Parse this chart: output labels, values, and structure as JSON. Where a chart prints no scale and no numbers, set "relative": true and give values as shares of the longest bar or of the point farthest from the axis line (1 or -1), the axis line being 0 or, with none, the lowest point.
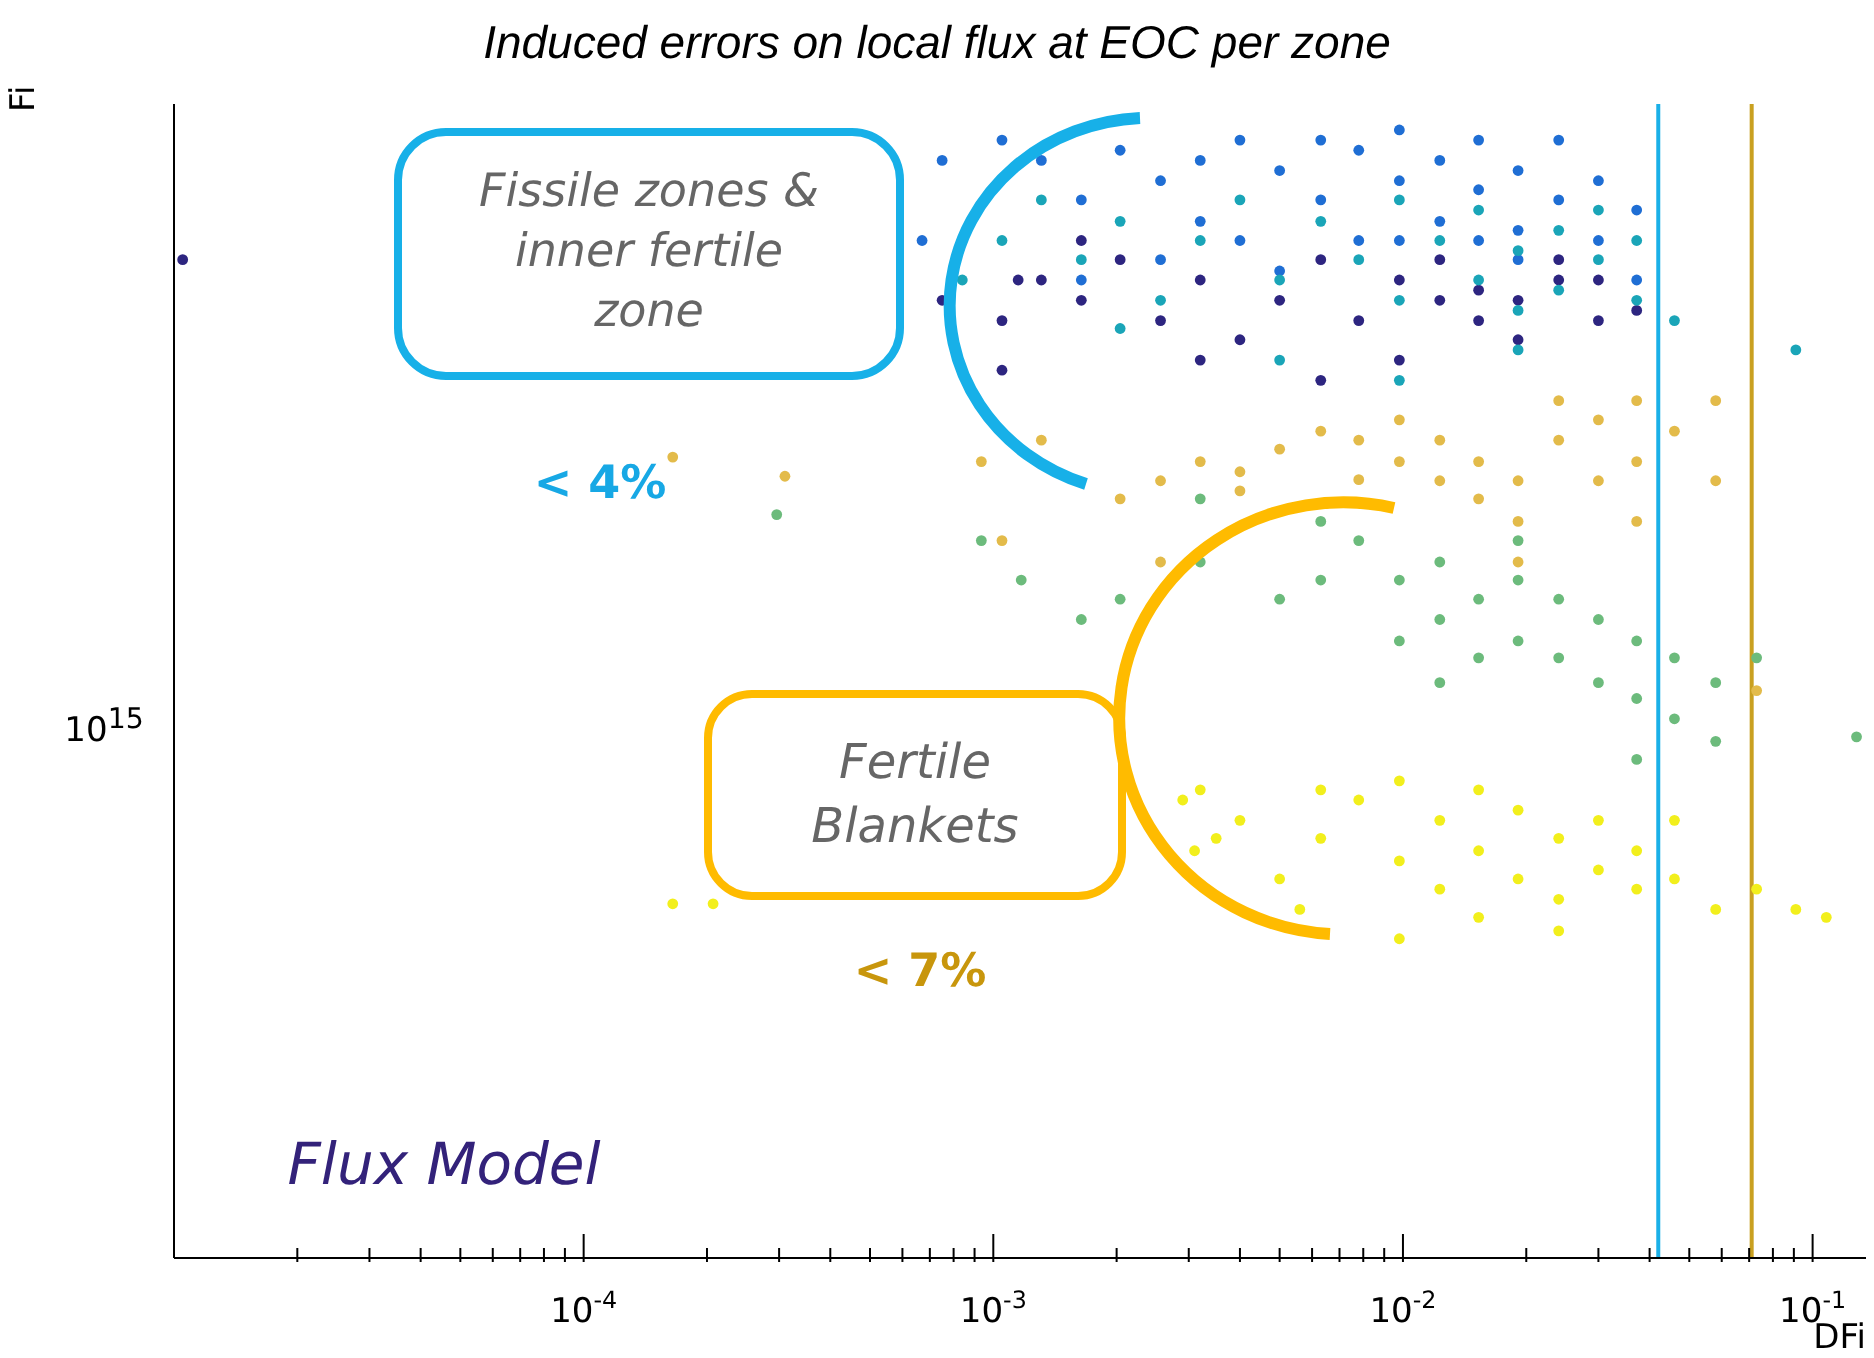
{
  "chart_data": {
    "type": "scatter",
    "title": "Induced errors on local flux at EOC per zone",
    "xlabel": "DFi",
    "ylabel": "Fi",
    "log": "x",
    "grid": false,
    "legend": false,
    "marker": "circle",
    "relative": true,
    "xlim": [
      1e-05,
      0.135
    ],
    "xticks": [
      {
        "value": 2e-05,
        "label": null
      },
      {
        "value": 3e-05,
        "label": null
      },
      {
        "value": 4e-05,
        "label": null
      },
      {
        "value": 5e-05,
        "label": null
      },
      {
        "value": 6e-05,
        "label": null
      },
      {
        "value": 7e-05,
        "label": null
      },
      {
        "value": 8e-05,
        "label": null
      },
      {
        "value": 9e-05,
        "label": null
      },
      {
        "value": 0.0001,
        "label": "10$^{-4}$"
      },
      {
        "value": 0.0002,
        "label": null
      },
      {
        "value": 0.0003,
        "label": null
      },
      {
        "value": 0.0004,
        "label": null
      },
      {
        "value": 0.0005,
        "label": null
      },
      {
        "value": 0.0006,
        "label": null
      },
      {
        "value": 0.0007,
        "label": null
      },
      {
        "value": 0.0008,
        "label": null
      },
      {
        "value": 0.0009,
        "label": null
      },
      {
        "value": 0.001,
        "label": "10$^{-3}$"
      },
      {
        "value": 0.002,
        "label": null
      },
      {
        "value": 0.003,
        "label": null
      },
      {
        "value": 0.004,
        "label": null
      },
      {
        "value": 0.005,
        "label": null
      },
      {
        "value": 0.006,
        "label": null
      },
      {
        "value": 0.007,
        "label": null
      },
      {
        "value": 0.008,
        "label": null
      },
      {
        "value": 0.009,
        "label": null
      },
      {
        "value": 0.01,
        "label": "10$^{-2}$"
      },
      {
        "value": 0.02,
        "label": null
      },
      {
        "value": 0.03,
        "label": null
      },
      {
        "value": 0.04,
        "label": null
      },
      {
        "value": 0.05,
        "label": null
      },
      {
        "value": 0.06,
        "label": null
      },
      {
        "value": 0.07,
        "label": null
      },
      {
        "value": 0.08,
        "label": null
      },
      {
        "value": 0.09,
        "label": null
      },
      {
        "value": 0.1,
        "label": "10$^{-1}$"
      }
    ],
    "ref_lines": [
      {
        "axis": "x",
        "value": 0.042,
        "color": "#1ab0e8"
      },
      {
        "axis": "x",
        "value": 0.071,
        "color": "#c9a020"
      }
    ],
    "annotations": [
      "Fissile zones & inner fertile zone",
      "< 4%",
      "Fertile Blankets",
      "< 7%",
      "Flux Model",
      "10$^{15}$"
    ],
    "series": [
      {
        "color": "#1f6ed4",
        "x": [
          0.00105,
          0.00131,
          0.00164,
          0.00204,
          0.00256,
          0.0032,
          0.004,
          0.005,
          0.0063,
          0.0078,
          0.0098,
          0.0098,
          0.0123,
          0.0123,
          0.0153,
          0.0153,
          0.0191,
          0.0191,
          0.024,
          0.024,
          0.03,
          0.03,
          0.0372,
          0.00075,
          0.00067,
          0.004,
          0.0078,
          0.005,
          0.00256,
          0.00164,
          0.0372,
          0.0191,
          0.0098,
          0.0032,
          0.0063,
          0.0153
        ],
        "values": [
          0.991,
          0.973,
          0.938,
          0.982,
          0.955,
          0.919,
          0.991,
          0.964,
          0.938,
          0.982,
          0.955,
          1,
          0.919,
          0.973,
          0.991,
          0.947,
          0.964,
          0.911,
          0.991,
          0.938,
          0.955,
          0.902,
          0.929,
          0.973,
          0.902,
          0.902,
          0.902,
          0.875,
          0.885,
          0.867,
          0.867,
          0.885,
          0.902,
          0.973,
          0.991,
          0.902
        ]
      },
      {
        "color": "#2d2580",
        "x": [
          1.05e-05,
          0.00115,
          0.00075,
          0.00105,
          0.00131,
          0.00164,
          0.00204,
          0.00256,
          0.0032,
          0.004,
          0.005,
          0.0063,
          0.0078,
          0.0098,
          0.0098,
          0.0123,
          0.0123,
          0.0153,
          0.0153,
          0.0191,
          0.0191,
          0.024,
          0.024,
          0.03,
          0.03,
          0.0372,
          0.0032,
          0.0063,
          0.00164,
          0.00105
        ],
        "values": [
          0.885,
          0.867,
          0.849,
          0.831,
          0.867,
          0.849,
          0.885,
          0.831,
          0.867,
          0.814,
          0.849,
          0.885,
          0.831,
          0.867,
          0.796,
          0.849,
          0.885,
          0.831,
          0.858,
          0.849,
          0.814,
          0.867,
          0.885,
          0.831,
          0.867,
          0.84,
          0.796,
          0.778,
          0.902,
          0.787
        ]
      },
      {
        "color": "#1aa5b8",
        "x": [
          0.00084,
          0.00105,
          0.00131,
          0.00164,
          0.00204,
          0.00256,
          0.0032,
          0.004,
          0.005,
          0.0063,
          0.0078,
          0.0098,
          0.0098,
          0.0123,
          0.0153,
          0.0153,
          0.0191,
          0.0191,
          0.024,
          0.024,
          0.03,
          0.03,
          0.0372,
          0.0372,
          0.046,
          0.091,
          0.005,
          0.0098,
          0.00204,
          0.0191
        ],
        "values": [
          0.867,
          0.902,
          0.938,
          0.885,
          0.919,
          0.849,
          0.902,
          0.938,
          0.867,
          0.919,
          0.885,
          0.938,
          0.849,
          0.902,
          0.867,
          0.929,
          0.893,
          0.84,
          0.911,
          0.858,
          0.885,
          0.929,
          0.849,
          0.902,
          0.831,
          0.805,
          0.796,
          0.778,
          0.824,
          0.805
        ]
      },
      {
        "color": "#e3bb4a",
        "x": [
          0.000165,
          0.00031,
          0.000935,
          0.00131,
          0.00204,
          0.00256,
          0.0032,
          0.004,
          0.005,
          0.0063,
          0.0078,
          0.0098,
          0.0098,
          0.0123,
          0.0123,
          0.0153,
          0.0153,
          0.0191,
          0.0191,
          0.024,
          0.024,
          0.03,
          0.03,
          0.0372,
          0.0372,
          0.0372,
          0.046,
          0.058,
          0.073,
          0.058,
          0.0078,
          0.004,
          0.00256,
          0.00105,
          0.0191
        ],
        "values": [
          0.71,
          0.693,
          0.706,
          0.725,
          0.673,
          0.689,
          0.706,
          0.697,
          0.717,
          0.733,
          0.725,
          0.706,
          0.743,
          0.689,
          0.725,
          0.706,
          0.673,
          0.689,
          0.653,
          0.76,
          0.725,
          0.743,
          0.689,
          0.76,
          0.706,
          0.653,
          0.733,
          0.689,
          0.503,
          0.76,
          0.69,
          0.68,
          0.617,
          0.636,
          0.617
        ]
      },
      {
        "color": "#6cbb7c",
        "x": [
          0.000296,
          0.000935,
          0.00117,
          0.00164,
          0.00204,
          0.0032,
          0.005,
          0.0063,
          0.0078,
          0.0098,
          0.0098,
          0.0123,
          0.0123,
          0.0153,
          0.0153,
          0.0191,
          0.0191,
          0.024,
          0.024,
          0.03,
          0.03,
          0.0372,
          0.0372,
          0.046,
          0.046,
          0.058,
          0.058,
          0.073,
          0.128,
          0.0032,
          0.0063,
          0.0191,
          0.0372,
          0.0123
        ],
        "values": [
          0.659,
          0.636,
          0.601,
          0.566,
          0.584,
          0.617,
          0.584,
          0.601,
          0.636,
          0.601,
          0.547,
          0.617,
          0.566,
          0.584,
          0.532,
          0.601,
          0.547,
          0.584,
          0.532,
          0.566,
          0.51,
          0.547,
          0.496,
          0.532,
          0.478,
          0.51,
          0.458,
          0.532,
          0.462,
          0.673,
          0.653,
          0.636,
          0.442,
          0.51
        ]
      },
      {
        "color": "#f2ef1c",
        "x": [
          0.000165,
          0.000207,
          0.0031,
          0.0029,
          0.0035,
          0.0032,
          0.004,
          0.005,
          0.0063,
          0.0078,
          0.0098,
          0.0098,
          0.0123,
          0.0123,
          0.0153,
          0.0153,
          0.0191,
          0.0191,
          0.024,
          0.024,
          0.03,
          0.03,
          0.0372,
          0.0372,
          0.046,
          0.046,
          0.058,
          0.073,
          0.091,
          0.108,
          0.0098,
          0.024,
          0.0056,
          0.0063,
          0.0153
        ],
        "values": [
          0.314,
          0.314,
          0.361,
          0.406,
          0.372,
          0.415,
          0.388,
          0.336,
          0.372,
          0.406,
          0.423,
          0.352,
          0.388,
          0.327,
          0.415,
          0.361,
          0.336,
          0.397,
          0.372,
          0.318,
          0.344,
          0.388,
          0.327,
          0.361,
          0.336,
          0.388,
          0.309,
          0.327,
          0.309,
          0.302,
          0.283,
          0.29,
          0.309,
          0.415,
          0.302
        ]
      }
    ]
  }
}
